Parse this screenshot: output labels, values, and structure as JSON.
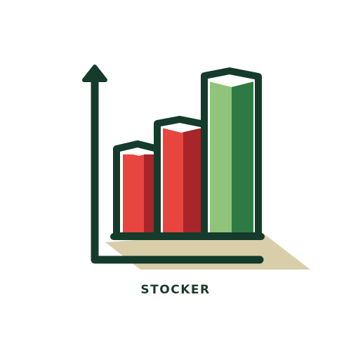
{
  "brand": {
    "name": "STOCKER"
  },
  "logo": {
    "icon": "rising-bar-chart-icon",
    "bar_levels_relative": [
      0.55,
      0.72,
      1.0
    ],
    "bar_trends": [
      "down",
      "down",
      "up"
    ]
  },
  "colors": {
    "outline": "#143b2b",
    "bar_red_light": "#e8453f",
    "bar_red_dark": "#a8262a",
    "bar_green_light": "#8fc47a",
    "bar_green_dark": "#2f7a44",
    "shadow": "#d8ceaa",
    "top_face": "#ffffff",
    "background": "#ffffff"
  }
}
